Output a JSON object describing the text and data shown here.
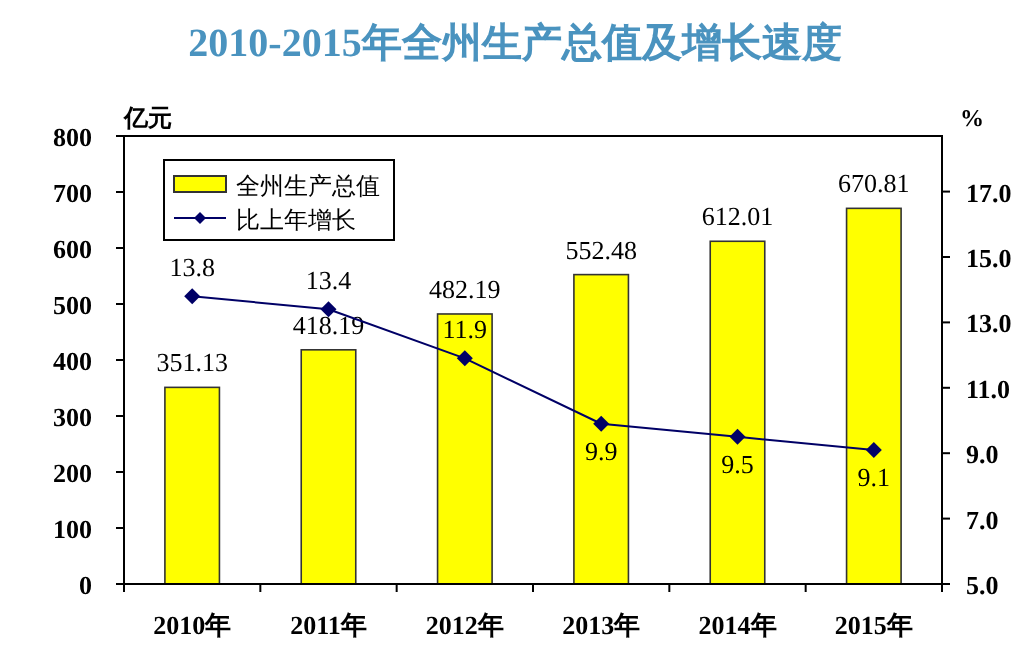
{
  "chart_data": {
    "type": "bar",
    "title": "2010-2015年全州生产总值及增长速度",
    "ylabel": "亿元",
    "y2label": "%",
    "categories": [
      "2010年",
      "2011年",
      "2012年",
      "2013年",
      "2014年",
      "2015年"
    ],
    "series": [
      {
        "name": "全州生产总值",
        "color": "#ffff00",
        "values": [
          351.13,
          418.19,
          482.19,
          552.48,
          612.01,
          670.81
        ]
      },
      {
        "name": "比上年增长",
        "type": "line",
        "axis": "y2",
        "color": "#000066",
        "marker": "diamond",
        "values": [
          13.8,
          13.4,
          11.9,
          9.9,
          9.5,
          9.1
        ]
      }
    ],
    "ylim": [
      0,
      800
    ],
    "yticks": [
      0,
      100,
      200,
      300,
      400,
      500,
      600,
      700,
      800
    ],
    "y2lim": [
      5,
      18.7
    ],
    "y2ticks": [
      {
        "value": 5,
        "label": "5.0"
      },
      {
        "value": 7,
        "label": "7.0"
      },
      {
        "value": 9,
        "label": "9.0"
      },
      {
        "value": 11,
        "label": "11.0"
      },
      {
        "value": 13,
        "label": "13.0"
      },
      {
        "value": 15,
        "label": "15.0"
      },
      {
        "value": 17,
        "label": "17.0"
      }
    ],
    "data_labels": true,
    "legend": "top left",
    "grid": false
  }
}
